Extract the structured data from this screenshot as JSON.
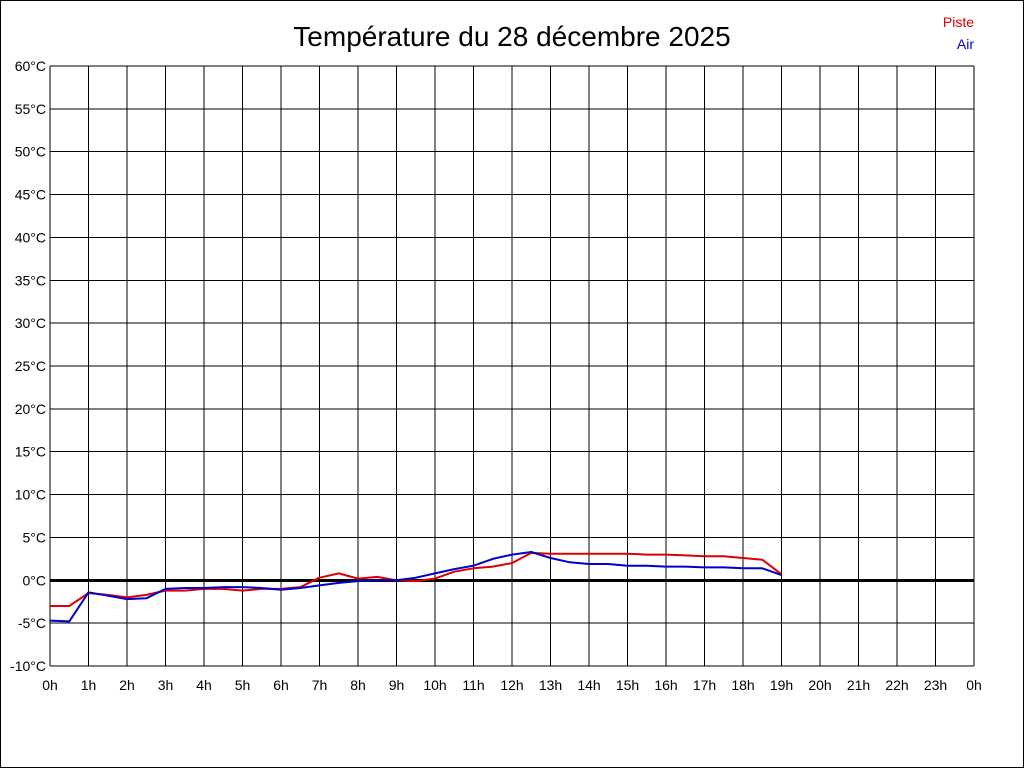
{
  "chart_data": {
    "type": "line",
    "title": "Température du 28 décembre 2025",
    "xlabel": "",
    "ylabel": "",
    "x_tick_labels": [
      "0h",
      "1h",
      "2h",
      "3h",
      "4h",
      "5h",
      "6h",
      "7h",
      "8h",
      "9h",
      "10h",
      "11h",
      "12h",
      "13h",
      "14h",
      "15h",
      "16h",
      "17h",
      "18h",
      "19h",
      "20h",
      "21h",
      "22h",
      "23h",
      "0h"
    ],
    "y_tick_labels": [
      "60°C",
      "55°C",
      "50°C",
      "45°C",
      "40°C",
      "35°C",
      "30°C",
      "25°C",
      "20°C",
      "15°C",
      "10°C",
      "5°C",
      "0°C",
      "-5°C",
      "-10°C"
    ],
    "xlim": [
      0,
      24
    ],
    "ylim": [
      -10,
      60
    ],
    "grid": true,
    "legend_position": "top-right",
    "zero_line": true,
    "series": [
      {
        "name": "Piste",
        "color": "#dd0000",
        "x": [
          0,
          0.5,
          1,
          1.5,
          2,
          2.5,
          3,
          3.5,
          4,
          4.5,
          5,
          5.5,
          6,
          6.5,
          7,
          7.5,
          8,
          8.5,
          9,
          9.5,
          10,
          10.5,
          11,
          11.5,
          12,
          12.5,
          13,
          14,
          15,
          15.5,
          16,
          16.5,
          17,
          17.5,
          18,
          18.5,
          19
        ],
        "values": [
          -3.0,
          -3.0,
          -1.5,
          -1.7,
          -2.0,
          -1.7,
          -1.2,
          -1.2,
          -1.0,
          -1.0,
          -1.2,
          -1.0,
          -1.0,
          -0.8,
          0.3,
          0.8,
          0.2,
          0.4,
          0.0,
          -0.1,
          0.2,
          1.0,
          1.4,
          1.6,
          2.0,
          3.2,
          3.1,
          3.1,
          3.1,
          3.0,
          3.0,
          2.9,
          2.8,
          2.8,
          2.6,
          2.4,
          0.7
        ]
      },
      {
        "name": "Air",
        "color": "#0000cc",
        "x": [
          0,
          0.5,
          1,
          1.5,
          2,
          2.5,
          3,
          3.5,
          4,
          4.5,
          5,
          5.5,
          6,
          6.5,
          7,
          7.5,
          8,
          8.5,
          9,
          9.5,
          10,
          10.5,
          11,
          11.5,
          12,
          12.5,
          13,
          13.5,
          14,
          14.5,
          15,
          15.5,
          16,
          16.5,
          17,
          17.5,
          18,
          18.5,
          19
        ],
        "values": [
          -4.7,
          -4.8,
          -1.4,
          -1.8,
          -2.2,
          -2.1,
          -1.0,
          -0.9,
          -0.9,
          -0.8,
          -0.8,
          -0.9,
          -1.1,
          -0.9,
          -0.6,
          -0.3,
          -0.1,
          0.0,
          0.0,
          0.3,
          0.8,
          1.3,
          1.7,
          2.5,
          3.0,
          3.3,
          2.6,
          2.1,
          1.9,
          1.9,
          1.7,
          1.7,
          1.6,
          1.6,
          1.5,
          1.5,
          1.4,
          1.4,
          0.6
        ]
      }
    ]
  }
}
